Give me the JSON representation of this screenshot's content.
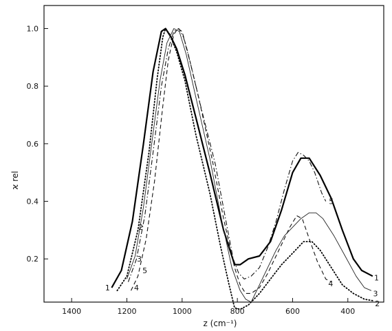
{
  "chart_data": {
    "type": "line",
    "xlabel": "z (cm⁻¹)",
    "ylabel": "ϰ rel",
    "xlim": [
      1500,
      270
    ],
    "ylim": [
      0.05,
      1.08
    ],
    "x_reversed": true,
    "x_ticks": [
      {
        "value": 1400,
        "label": "1400"
      },
      {
        "value": 1200,
        "label": "1200"
      },
      {
        "value": 1000,
        "label": "1000"
      },
      {
        "value": 800,
        "label": "800"
      },
      {
        "value": 600,
        "label": "600"
      },
      {
        "value": 400,
        "label": "400"
      }
    ],
    "y_ticks": [
      {
        "value": 1.0,
        "label": "1.0"
      },
      {
        "value": 0.8,
        "label": "0.8"
      },
      {
        "value": 0.6,
        "label": "0.6"
      },
      {
        "value": 0.4,
        "label": "0.4"
      },
      {
        "value": 0.2,
        "label": "0.2"
      }
    ],
    "grid": false,
    "series": [
      {
        "name": "1",
        "style": "solid-thick",
        "label_at": [
          1270,
          0.1
        ],
        "points": [
          [
            1255,
            0.1
          ],
          [
            1220,
            0.16
          ],
          [
            1180,
            0.33
          ],
          [
            1140,
            0.6
          ],
          [
            1105,
            0.85
          ],
          [
            1075,
            0.99
          ],
          [
            1060,
            1.0
          ],
          [
            1040,
            0.97
          ],
          [
            1020,
            0.93
          ],
          [
            990,
            0.84
          ],
          [
            950,
            0.69
          ],
          [
            900,
            0.5
          ],
          [
            850,
            0.3
          ],
          [
            810,
            0.18
          ],
          [
            790,
            0.18
          ],
          [
            760,
            0.2
          ],
          [
            720,
            0.21
          ],
          [
            680,
            0.26
          ],
          [
            640,
            0.37
          ],
          [
            600,
            0.5
          ],
          [
            570,
            0.55
          ],
          [
            540,
            0.55
          ],
          [
            500,
            0.49
          ],
          [
            460,
            0.41
          ],
          [
            420,
            0.3
          ],
          [
            380,
            0.2
          ],
          [
            350,
            0.16
          ],
          [
            310,
            0.14
          ]
        ]
      },
      {
        "name": "2",
        "style": "dotted",
        "label_at": [
          1150,
          0.31
        ],
        "points": [
          [
            1235,
            0.09
          ],
          [
            1200,
            0.14
          ],
          [
            1160,
            0.3
          ],
          [
            1120,
            0.57
          ],
          [
            1090,
            0.83
          ],
          [
            1070,
            0.97
          ],
          [
            1060,
            1.0
          ],
          [
            1045,
            0.98
          ],
          [
            1020,
            0.92
          ],
          [
            990,
            0.82
          ],
          [
            950,
            0.63
          ],
          [
            900,
            0.43
          ],
          [
            860,
            0.24
          ],
          [
            830,
            0.11
          ],
          [
            810,
            0.03
          ],
          [
            790,
            0.025
          ],
          [
            760,
            0.04
          ],
          [
            720,
            0.08
          ],
          [
            680,
            0.13
          ],
          [
            640,
            0.18
          ],
          [
            600,
            0.22
          ],
          [
            560,
            0.26
          ],
          [
            530,
            0.26
          ],
          [
            500,
            0.23
          ],
          [
            460,
            0.17
          ],
          [
            420,
            0.11
          ],
          [
            380,
            0.08
          ],
          [
            340,
            0.06
          ],
          [
            310,
            0.055
          ]
        ]
      },
      {
        "name": "3",
        "style": "solid-thin",
        "label_at": [
          1155,
          0.2
        ],
        "points": [
          [
            1200,
            0.13
          ],
          [
            1170,
            0.21
          ],
          [
            1140,
            0.38
          ],
          [
            1110,
            0.6
          ],
          [
            1080,
            0.82
          ],
          [
            1055,
            0.95
          ],
          [
            1030,
            1.0
          ],
          [
            1010,
            0.99
          ],
          [
            985,
            0.91
          ],
          [
            950,
            0.76
          ],
          [
            900,
            0.55
          ],
          [
            860,
            0.35
          ],
          [
            820,
            0.17
          ],
          [
            790,
            0.09
          ],
          [
            770,
            0.06
          ],
          [
            750,
            0.05
          ],
          [
            720,
            0.11
          ],
          [
            690,
            0.17
          ],
          [
            660,
            0.23
          ],
          [
            630,
            0.28
          ],
          [
            600,
            0.31
          ],
          [
            570,
            0.34
          ],
          [
            540,
            0.36
          ],
          [
            515,
            0.36
          ],
          [
            490,
            0.34
          ],
          [
            450,
            0.28
          ],
          [
            410,
            0.21
          ],
          [
            370,
            0.14
          ],
          [
            340,
            0.1
          ],
          [
            315,
            0.09
          ]
        ]
      },
      {
        "name": "4",
        "style": "dashed",
        "label_at": [
          1165,
          0.1
        ],
        "points": [
          [
            1185,
            0.09
          ],
          [
            1160,
            0.14
          ],
          [
            1130,
            0.27
          ],
          [
            1100,
            0.47
          ],
          [
            1070,
            0.73
          ],
          [
            1050,
            0.89
          ],
          [
            1030,
            0.98
          ],
          [
            1015,
            1.0
          ],
          [
            1000,
            0.99
          ],
          [
            980,
            0.92
          ],
          [
            940,
            0.76
          ],
          [
            890,
            0.54
          ],
          [
            850,
            0.34
          ],
          [
            810,
            0.17
          ],
          [
            790,
            0.11
          ],
          [
            770,
            0.08
          ],
          [
            750,
            0.08
          ],
          [
            720,
            0.1
          ],
          [
            690,
            0.15
          ],
          [
            650,
            0.23
          ],
          [
            610,
            0.31
          ],
          [
            585,
            0.35
          ],
          [
            565,
            0.34
          ],
          [
            540,
            0.27
          ],
          [
            510,
            0.19
          ],
          [
            480,
            0.13
          ],
          [
            460,
            0.12
          ]
        ]
      },
      {
        "name": "5",
        "style": "dash-dot",
        "label_at": [
          1135,
          0.16
        ],
        "points": [
          [
            1195,
            0.12
          ],
          [
            1165,
            0.2
          ],
          [
            1135,
            0.35
          ],
          [
            1105,
            0.57
          ],
          [
            1075,
            0.8
          ],
          [
            1050,
            0.93
          ],
          [
            1030,
            0.99
          ],
          [
            1012,
            1.0
          ],
          [
            995,
            0.97
          ],
          [
            970,
            0.88
          ],
          [
            930,
            0.72
          ],
          [
            880,
            0.53
          ],
          [
            845,
            0.35
          ],
          [
            815,
            0.2
          ],
          [
            795,
            0.15
          ],
          [
            775,
            0.13
          ],
          [
            750,
            0.14
          ],
          [
            720,
            0.17
          ],
          [
            690,
            0.24
          ],
          [
            660,
            0.33
          ],
          [
            630,
            0.44
          ],
          [
            600,
            0.54
          ],
          [
            580,
            0.57
          ],
          [
            560,
            0.56
          ],
          [
            540,
            0.54
          ],
          [
            520,
            0.5
          ],
          [
            495,
            0.43
          ],
          [
            480,
            0.4
          ]
        ]
      }
    ],
    "inline_labels": [
      {
        "text": "1",
        "at": [
          296,
          0.135
        ]
      },
      {
        "text": "3",
        "at": [
          300,
          0.08
        ]
      },
      {
        "text": "2",
        "at": [
          293,
          0.045
        ]
      },
      {
        "text": "4",
        "at": [
          462,
          0.115
        ]
      },
      {
        "text": "5",
        "at": [
          460,
          0.4
        ]
      }
    ]
  }
}
